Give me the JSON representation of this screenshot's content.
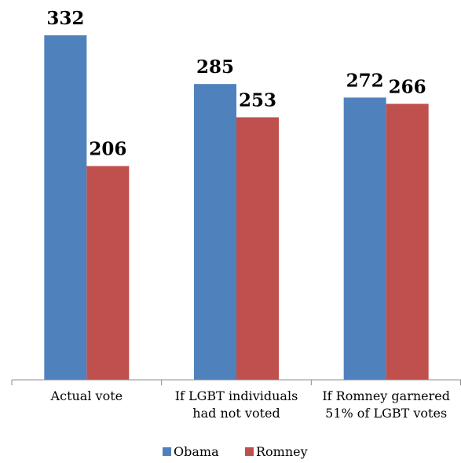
{
  "chart_data": {
    "type": "bar",
    "categories": [
      [
        "Actual vote"
      ],
      [
        "If LGBT individuals",
        "had not voted"
      ],
      [
        "If Romney garnered",
        "51% of LGBT votes"
      ]
    ],
    "series": [
      {
        "name": "Obama",
        "values": [
          332,
          285,
          272
        ],
        "color": "#4f81bd"
      },
      {
        "name": "Romney",
        "values": [
          206,
          253,
          266
        ],
        "color": "#c0504d"
      }
    ],
    "ylim": [
      0,
      400
    ],
    "grid": false,
    "legend": "bottom-center",
    "data_labels": true
  }
}
